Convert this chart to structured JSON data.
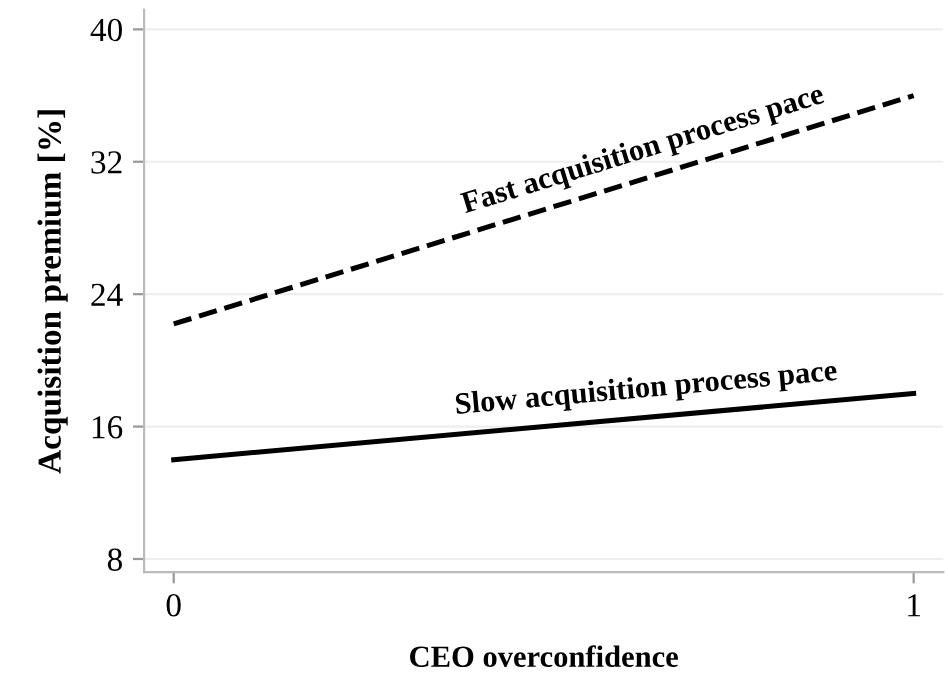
{
  "chart_data": {
    "type": "line",
    "xlabel": "CEO overconfidence",
    "ylabel": "Acquisition premium [%]",
    "x": [
      0,
      1
    ],
    "series": [
      {
        "name": "Fast acquisition process pace",
        "color": "#000000",
        "values": [
          22.2,
          36
        ],
        "line_style": "dashed"
      },
      {
        "name": "Slow acquisition process pace",
        "color": "#000000",
        "values": [
          14,
          18
        ],
        "line_style": "solid"
      }
    ],
    "xlim": [
      -0.04,
      1.04
    ],
    "ylim": [
      7.2,
      41.2
    ],
    "xticks": [
      0,
      1
    ],
    "yticks": [
      8,
      16,
      24,
      32,
      40
    ],
    "grid": "y",
    "legend": false,
    "marker": "none"
  }
}
